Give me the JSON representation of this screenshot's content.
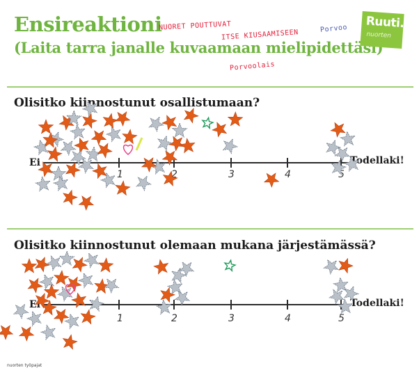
{
  "header": {
    "title": "Ensireaktioni",
    "subtitle": "(Laita tarra janalle kuvaamaan mielipidettäsi)"
  },
  "logo": {
    "text": "Ruuti.",
    "subtext": "nuorten"
  },
  "handwritten": {
    "line1": "NUORET POUTTUVAT",
    "line2": "ITSE KIUSAAMISEEN",
    "name1": "Porvoo",
    "name2": "Porvoolais"
  },
  "questions": [
    {
      "text": "Olisitko kiinnostunut osallistumaan?",
      "left_label": "Ei",
      "right_label": "Todellaki!",
      "ticks": [
        "1",
        "2",
        "3",
        "4",
        "5"
      ],
      "stickers": {
        "orange_count": 27,
        "silver_count": 27,
        "other_marks": [
          "pink-heart",
          "yellow-line",
          "green-star"
        ]
      }
    },
    {
      "text": "Olisitko kiinnostunut olemaan mukana järjestämässä?",
      "left_label": "Ei",
      "right_label": "Todellaki!",
      "ticks": [
        "1",
        "2",
        "3",
        "4",
        "5"
      ],
      "stickers": {
        "orange_count": 26,
        "silver_count": 26,
        "other_marks": [
          "pink-heart",
          "green-star"
        ]
      }
    }
  ],
  "footer": {
    "text": "nuorten työpajat"
  },
  "colors": {
    "title_green": "#6fb43f",
    "logo_green": "#8cc63f",
    "orange_star": "#e25c17",
    "silver_star": "#b9c0c8"
  }
}
